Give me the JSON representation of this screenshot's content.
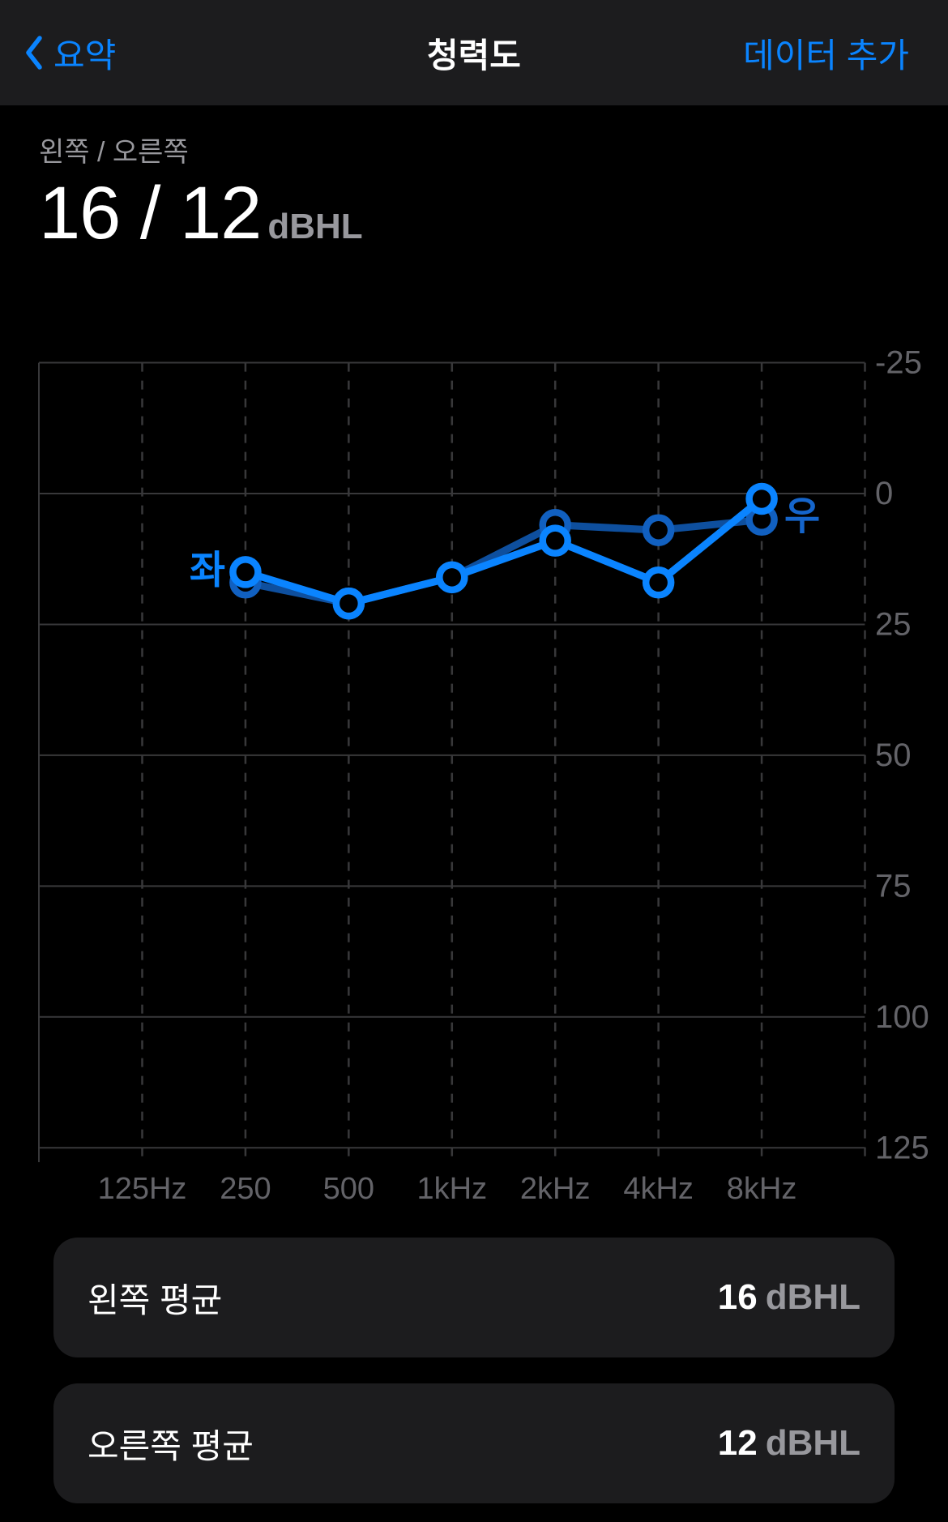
{
  "nav": {
    "back_label": "요약",
    "title": "청력도",
    "add_button": "데이터 추가"
  },
  "headline": {
    "subtitle": "왼쪽 / 오른쪽",
    "value": "16 / 12",
    "unit": "dBHL"
  },
  "chart_data": {
    "type": "line",
    "title": "Audiogram (청력도)",
    "x_categories": [
      "125Hz",
      "250",
      "500",
      "1kHz",
      "2kHz",
      "4kHz",
      "8kHz"
    ],
    "y_ticks": [
      -25,
      0,
      25,
      50,
      75,
      100,
      125
    ],
    "y_unit": "dBHL",
    "y_inverted": true,
    "grid": {
      "horizontal": "solid",
      "vertical": "dashed"
    },
    "legend_position": "inline-ear-labels",
    "series": [
      {
        "name": "좌",
        "ear": "left",
        "color": "#0a84ff",
        "line_color": "#0a84ff",
        "label_color": "#0a84ff",
        "frequencies_hz": [
          250,
          500,
          1000,
          2000,
          4000,
          8000
        ],
        "values_dbhl": [
          15,
          21,
          16,
          9,
          17,
          1
        ]
      },
      {
        "name": "우",
        "ear": "right",
        "color": "#1160c0",
        "line_color": "#0e4f9e",
        "label_color": "#1565cb",
        "frequencies_hz": [
          250,
          500,
          1000,
          2000,
          4000,
          8000
        ],
        "values_dbhl": [
          17,
          21,
          16,
          6,
          7,
          5
        ]
      }
    ]
  },
  "cards": [
    {
      "label": "왼쪽 평균",
      "value": "16",
      "unit": "dBHL"
    },
    {
      "label": "오른쪽 평균",
      "value": "12",
      "unit": "dBHL"
    }
  ],
  "colors": {
    "accent": "#0a84ff",
    "background": "#000000",
    "header_background": "#1c1c1e",
    "card_background": "#1c1c1e",
    "text_primary": "#ffffff",
    "text_secondary": "#98989d",
    "axis_label": "#636368",
    "grid_line": "#38383a",
    "left_series": "#0a84ff",
    "right_series": "#1160c0"
  }
}
